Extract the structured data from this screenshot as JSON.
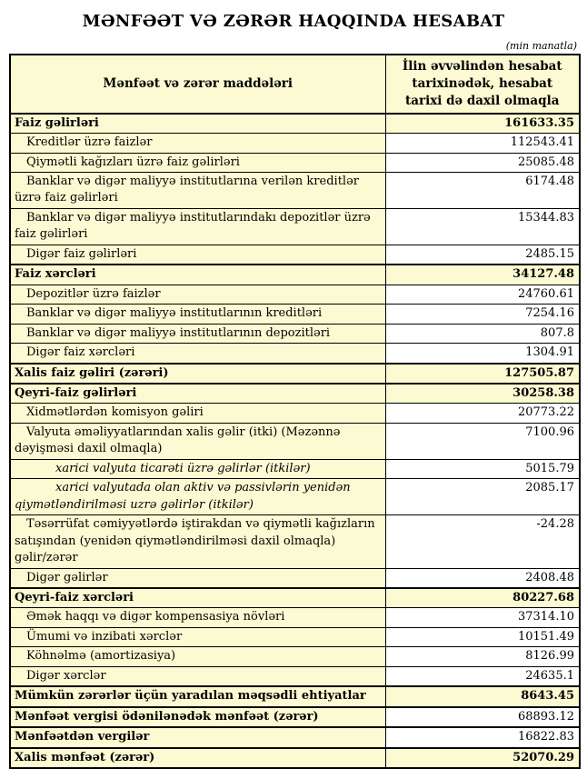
{
  "page": {
    "title": "MƏNFƏƏT VƏ ZƏRƏR HAQQINDA HESABAT",
    "unit_note": "(min manatla)"
  },
  "colors": {
    "highlight": "#FBFAD2",
    "border": "#000000",
    "text": "#000000"
  },
  "table": {
    "header": {
      "items": "Mənfəət və zərər maddələri",
      "value": "İlin əvvəlindən hesabat tarixinədək, hesabat tarixi də daxil olmaqla"
    },
    "rows": [
      {
        "label": "Faiz gəlirləri",
        "value": "161633.35",
        "style": "section",
        "value_highlight": true,
        "thick_top": true
      },
      {
        "label": "Kreditlər üzrə faizlər",
        "value": "112543.41",
        "style": "item",
        "value_highlight": false,
        "thick_top": false
      },
      {
        "label": "Qiymətli kağızları üzrə faiz gəlirləri",
        "value": "25085.48",
        "style": "item",
        "value_highlight": false,
        "thick_top": false
      },
      {
        "label": "Banklar və digər maliyyə institutlarına verilən kreditlər üzrə faiz gəlirləri",
        "value": "6174.48",
        "style": "item",
        "value_highlight": false,
        "thick_top": false
      },
      {
        "label": "Banklar və digər maliyyə institutlarındakı depozitlər üzrə faiz gəlirləri",
        "value": "15344.83",
        "style": "item",
        "value_highlight": false,
        "thick_top": false
      },
      {
        "label": "Digər faiz gəlirləri",
        "value": "2485.15",
        "style": "item",
        "value_highlight": false,
        "thick_top": false
      },
      {
        "label": "Faiz xərcləri",
        "value": "34127.48",
        "style": "section",
        "value_highlight": true,
        "thick_top": true
      },
      {
        "label": "Depozitlər üzrə faizlər",
        "value": "24760.61",
        "style": "item",
        "value_highlight": false,
        "thick_top": false
      },
      {
        "label": "Banklar və digər maliyyə institutlarının kreditləri",
        "value": "7254.16",
        "style": "item",
        "value_highlight": false,
        "thick_top": false
      },
      {
        "label": "Banklar və digər maliyyə institutlarının depozitləri",
        "value": "807.8",
        "style": "item",
        "value_highlight": false,
        "thick_top": false
      },
      {
        "label": "Digər faiz xərcləri",
        "value": "1304.91",
        "style": "item",
        "value_highlight": false,
        "thick_top": false
      },
      {
        "label": "Xalis faiz gəliri (zərəri)",
        "value": "127505.87",
        "style": "section",
        "value_highlight": true,
        "thick_top": true
      },
      {
        "label": "Qeyri-faiz gəlirləri",
        "value": "30258.38",
        "style": "section",
        "value_highlight": true,
        "thick_top": true
      },
      {
        "label": "Xidmətlərdən komisyon gəliri",
        "value": "20773.22",
        "style": "item",
        "value_highlight": false,
        "thick_top": false
      },
      {
        "label": "Valyuta əməliyyatlarından xalis gəlir (itki) (Məzənnə dəyişməsi daxil olmaqla)",
        "value": "7100.96",
        "style": "item",
        "value_highlight": false,
        "thick_top": false
      },
      {
        "label": "xarici valyuta ticarəti üzrə gəlirlər (itkilər)",
        "value": "5015.79",
        "style": "subitem",
        "value_highlight": false,
        "thick_top": false
      },
      {
        "label": "xarici valyutada olan aktiv və passivlərin yenidən qiymətləndirilməsi uzrə gəlirlər (itkilər)",
        "value": "2085.17",
        "style": "subitem",
        "value_highlight": false,
        "thick_top": false
      },
      {
        "label": "Təsərrüfat cəmiyyətlərdə iştirakdan və qiymətli kağızların satışından (yenidən qiymətləndirilməsi daxil olmaqla) gəlir/zərər",
        "value": "-24.28",
        "style": "item",
        "value_highlight": false,
        "thick_top": false
      },
      {
        "label": "Digər gəlirlər",
        "value": "2408.48",
        "style": "item",
        "value_highlight": false,
        "thick_top": false
      },
      {
        "label": "Qeyri-faiz xərcləri",
        "value": "80227.68",
        "style": "section",
        "value_highlight": true,
        "thick_top": true
      },
      {
        "label": "Əmək haqqı və digər kompensasiya növləri",
        "value": "37314.10",
        "style": "item",
        "value_highlight": false,
        "thick_top": false
      },
      {
        "label": "Ümumi və inzibati xərclər",
        "value": "10151.49",
        "style": "item",
        "value_highlight": false,
        "thick_top": false
      },
      {
        "label": "Köhnəlmə (amortizasiya)",
        "value": "8126.99",
        "style": "item",
        "value_highlight": false,
        "thick_top": false
      },
      {
        "label": "Digər xərclər",
        "value": "24635.1",
        "style": "item",
        "value_highlight": false,
        "thick_top": false
      },
      {
        "label": "Mümkün zərərlər üçün yaradılan məqsədli ehtiyatlar",
        "value": "8643.45",
        "style": "section",
        "value_highlight": true,
        "thick_top": true
      },
      {
        "label": "Mənfəət vergisi ödənilənədək mənfəət (zərər)",
        "value": "68893.12",
        "style": "section",
        "value_highlight": false,
        "thick_top": true
      },
      {
        "label": "Mənfəətdən vergilər",
        "value": "16822.83",
        "style": "section",
        "value_highlight": false,
        "thick_top": true
      },
      {
        "label": "Xalis mənfəət (zərər)",
        "value": "52070.29",
        "style": "section",
        "value_highlight": true,
        "thick_top": true
      }
    ]
  }
}
